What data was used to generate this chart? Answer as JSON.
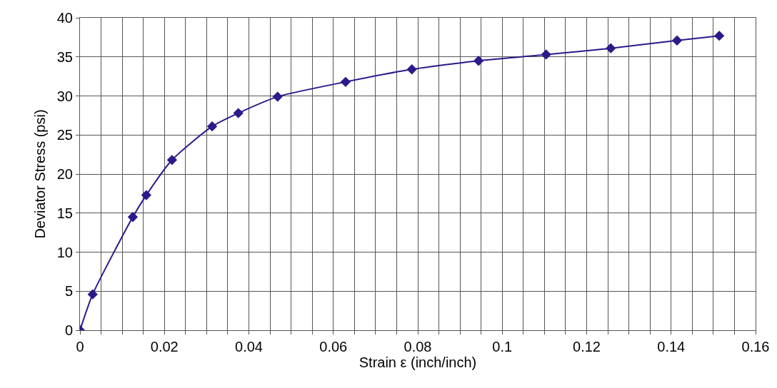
{
  "chart_data": {
    "type": "line",
    "xlabel": "Strain ε (inch/inch)",
    "ylabel": "Deviator Stress (psi)",
    "x": [
      0,
      0.003,
      0.0125,
      0.0157,
      0.0218,
      0.0313,
      0.0375,
      0.0468,
      0.0629,
      0.0786,
      0.0944,
      0.1104,
      0.1257,
      0.1414,
      0.1514
    ],
    "series": [
      {
        "color": "#2a1a8a",
        "values": [
          0,
          4.6,
          14.5,
          17.3,
          21.8,
          26.1,
          27.8,
          29.9,
          31.8,
          33.4,
          34.5,
          35.3,
          36.1,
          37.1,
          37.7
        ]
      }
    ],
    "xlim": [
      0,
      0.16
    ],
    "xticks": [
      0,
      {
        "value": 0.005,
        "label": null
      },
      {
        "value": 0.01,
        "label": null
      },
      {
        "value": 0.015,
        "label": null
      },
      0.02,
      {
        "value": 0.025,
        "label": null
      },
      {
        "value": 0.03,
        "label": null
      },
      {
        "value": 0.035,
        "label": null
      },
      0.04,
      {
        "value": 0.045,
        "label": null
      },
      {
        "value": 0.05,
        "label": null
      },
      {
        "value": 0.055,
        "label": null
      },
      0.06,
      {
        "value": 0.065,
        "label": null
      },
      {
        "value": 0.07,
        "label": null
      },
      {
        "value": 0.075,
        "label": null
      },
      0.08,
      {
        "value": 0.085,
        "label": null
      },
      {
        "value": 0.09,
        "label": null
      },
      {
        "value": 0.095,
        "label": null
      },
      {
        "value": 0.1,
        "label": "0.1"
      },
      {
        "value": 0.105,
        "label": null
      },
      {
        "value": 0.11,
        "label": null
      },
      {
        "value": 0.115,
        "label": null
      },
      0.12,
      {
        "value": 0.125,
        "label": null
      },
      {
        "value": 0.13,
        "label": null
      },
      {
        "value": 0.135,
        "label": null
      },
      0.14,
      {
        "value": 0.145,
        "label": null
      },
      {
        "value": 0.15,
        "label": null
      },
      {
        "value": 0.155,
        "label": null
      },
      0.16
    ],
    "ylim": [
      0,
      40
    ],
    "yticks": [
      0,
      5,
      10,
      15,
      20,
      25,
      30,
      35,
      40
    ],
    "grid": true,
    "marker": "diamond",
    "line_style": "solid"
  }
}
